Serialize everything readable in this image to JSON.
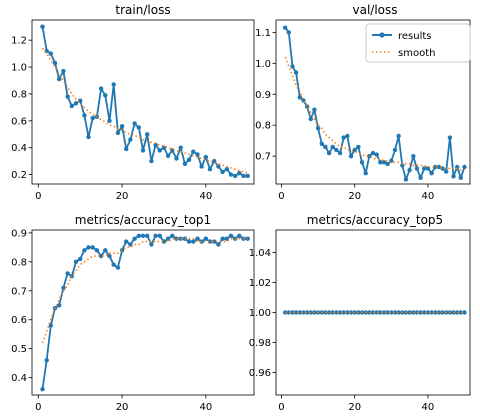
{
  "colors": {
    "results": "#1f77b4",
    "smooth": "#ff7f0e"
  },
  "legend": {
    "results": "results",
    "smooth": "smooth",
    "placement": "top-right",
    "panel": 1
  },
  "chart_data": [
    {
      "type": "line",
      "title": "train/loss",
      "xlim": [
        -1.5,
        51.5
      ],
      "ylim": [
        0.13,
        1.35
      ],
      "xticks": [
        0,
        20,
        40
      ],
      "yticks": [
        0.2,
        0.4,
        0.6,
        0.8,
        1.0,
        1.2
      ],
      "ytick_labels": [
        "0.2",
        "0.4",
        "0.6",
        "0.8",
        "1.0",
        "1.2"
      ],
      "series": [
        {
          "name": "results",
          "x": [
            1,
            2,
            3,
            4,
            5,
            6,
            7,
            8,
            9,
            10,
            11,
            12,
            13,
            14,
            15,
            16,
            17,
            18,
            19,
            20,
            21,
            22,
            23,
            24,
            25,
            26,
            27,
            28,
            29,
            30,
            31,
            32,
            33,
            34,
            35,
            36,
            37,
            38,
            39,
            40,
            41,
            42,
            43,
            44,
            45,
            46,
            47,
            48,
            49,
            50
          ],
          "values": [
            1.3,
            1.12,
            1.1,
            1.03,
            0.91,
            0.97,
            0.78,
            0.71,
            0.73,
            0.75,
            0.64,
            0.48,
            0.62,
            0.63,
            0.84,
            0.79,
            0.6,
            0.87,
            0.51,
            0.56,
            0.39,
            0.46,
            0.58,
            0.55,
            0.38,
            0.5,
            0.3,
            0.42,
            0.38,
            0.4,
            0.34,
            0.38,
            0.32,
            0.4,
            0.28,
            0.31,
            0.37,
            0.35,
            0.26,
            0.33,
            0.24,
            0.3,
            0.26,
            0.22,
            0.24,
            0.2,
            0.19,
            0.21,
            0.19,
            0.19
          ]
        },
        {
          "name": "smooth",
          "x": [
            1,
            2,
            3,
            4,
            5,
            6,
            7,
            8,
            9,
            10,
            11,
            12,
            13,
            14,
            15,
            16,
            17,
            18,
            19,
            20,
            21,
            22,
            23,
            24,
            25,
            26,
            27,
            28,
            29,
            30,
            31,
            32,
            33,
            34,
            35,
            36,
            37,
            38,
            39,
            40,
            41,
            42,
            43,
            44,
            45,
            46,
            47,
            48,
            49,
            50
          ],
          "values": [
            1.14,
            1.1,
            1.05,
            1.0,
            0.95,
            0.9,
            0.85,
            0.8,
            0.76,
            0.73,
            0.7,
            0.67,
            0.65,
            0.63,
            0.61,
            0.59,
            0.57,
            0.56,
            0.54,
            0.53,
            0.51,
            0.5,
            0.49,
            0.48,
            0.46,
            0.45,
            0.44,
            0.43,
            0.42,
            0.41,
            0.4,
            0.39,
            0.38,
            0.37,
            0.36,
            0.35,
            0.34,
            0.33,
            0.32,
            0.31,
            0.3,
            0.29,
            0.28,
            0.27,
            0.26,
            0.25,
            0.24,
            0.23,
            0.22,
            0.21
          ]
        }
      ]
    },
    {
      "type": "line",
      "title": "val/loss",
      "xlim": [
        -1.5,
        51.5
      ],
      "ylim": [
        0.61,
        1.14
      ],
      "xticks": [
        0,
        20,
        40
      ],
      "yticks": [
        0.7,
        0.8,
        0.9,
        1.0,
        1.1
      ],
      "ytick_labels": [
        "0.7",
        "0.8",
        "0.9",
        "1.0",
        "1.1"
      ],
      "series": [
        {
          "name": "results",
          "x": [
            1,
            2,
            3,
            4,
            5,
            6,
            7,
            8,
            9,
            10,
            11,
            12,
            13,
            14,
            15,
            16,
            17,
            18,
            19,
            20,
            21,
            22,
            23,
            24,
            25,
            26,
            27,
            28,
            29,
            30,
            31,
            32,
            33,
            34,
            35,
            36,
            37,
            38,
            39,
            40,
            41,
            42,
            43,
            44,
            45,
            46,
            47,
            48,
            49,
            50
          ],
          "values": [
            1.115,
            1.1,
            0.99,
            0.97,
            0.89,
            0.88,
            0.86,
            0.82,
            0.85,
            0.79,
            0.74,
            0.73,
            0.71,
            0.73,
            0.72,
            0.71,
            0.76,
            0.765,
            0.7,
            0.72,
            0.73,
            0.68,
            0.645,
            0.7,
            0.71,
            0.705,
            0.68,
            0.68,
            0.675,
            0.685,
            0.72,
            0.765,
            0.67,
            0.625,
            0.655,
            0.7,
            0.66,
            0.63,
            0.66,
            0.66,
            0.645,
            0.665,
            0.665,
            0.66,
            0.65,
            0.76,
            0.635,
            0.665,
            0.63,
            0.665
          ]
        },
        {
          "name": "smooth",
          "x": [
            1,
            2,
            3,
            4,
            5,
            6,
            7,
            8,
            9,
            10,
            11,
            12,
            13,
            14,
            15,
            16,
            17,
            18,
            19,
            20,
            21,
            22,
            23,
            24,
            25,
            26,
            27,
            28,
            29,
            30,
            31,
            32,
            33,
            34,
            35,
            36,
            37,
            38,
            39,
            40,
            41,
            42,
            43,
            44,
            45,
            46,
            47,
            48,
            49,
            50
          ],
          "values": [
            1.02,
            0.99,
            0.96,
            0.93,
            0.91,
            0.88,
            0.86,
            0.84,
            0.82,
            0.8,
            0.79,
            0.77,
            0.76,
            0.75,
            0.74,
            0.73,
            0.73,
            0.72,
            0.72,
            0.715,
            0.71,
            0.705,
            0.7,
            0.7,
            0.695,
            0.69,
            0.69,
            0.685,
            0.685,
            0.68,
            0.68,
            0.68,
            0.675,
            0.675,
            0.675,
            0.67,
            0.67,
            0.67,
            0.67,
            0.665,
            0.665,
            0.665,
            0.665,
            0.66,
            0.66,
            0.66,
            0.66,
            0.66,
            0.655,
            0.655
          ]
        }
      ]
    },
    {
      "type": "line",
      "title": "metrics/accuracy_top1",
      "xlim": [
        -1.5,
        51.5
      ],
      "ylim": [
        0.34,
        0.91
      ],
      "xticks": [
        0,
        20,
        40
      ],
      "yticks": [
        0.4,
        0.5,
        0.6,
        0.7,
        0.8,
        0.9
      ],
      "ytick_labels": [
        "0.4",
        "0.5",
        "0.6",
        "0.7",
        "0.8",
        "0.9"
      ],
      "series": [
        {
          "name": "results",
          "x": [
            1,
            2,
            3,
            4,
            5,
            6,
            7,
            8,
            9,
            10,
            11,
            12,
            13,
            14,
            15,
            16,
            17,
            18,
            19,
            20,
            21,
            22,
            23,
            24,
            25,
            26,
            27,
            28,
            29,
            30,
            31,
            32,
            33,
            34,
            35,
            36,
            37,
            38,
            39,
            40,
            41,
            42,
            43,
            44,
            45,
            46,
            47,
            48,
            49,
            50
          ],
          "values": [
            0.36,
            0.46,
            0.58,
            0.64,
            0.65,
            0.71,
            0.76,
            0.75,
            0.8,
            0.81,
            0.84,
            0.85,
            0.85,
            0.84,
            0.82,
            0.84,
            0.82,
            0.79,
            0.78,
            0.84,
            0.87,
            0.86,
            0.88,
            0.89,
            0.89,
            0.89,
            0.86,
            0.89,
            0.89,
            0.87,
            0.88,
            0.89,
            0.88,
            0.88,
            0.88,
            0.87,
            0.87,
            0.88,
            0.87,
            0.88,
            0.87,
            0.87,
            0.86,
            0.88,
            0.88,
            0.89,
            0.88,
            0.89,
            0.88,
            0.88
          ]
        },
        {
          "name": "smooth",
          "x": [
            1,
            2,
            3,
            4,
            5,
            6,
            7,
            8,
            9,
            10,
            11,
            12,
            13,
            14,
            15,
            16,
            17,
            18,
            19,
            20,
            21,
            22,
            23,
            24,
            25,
            26,
            27,
            28,
            29,
            30,
            31,
            32,
            33,
            34,
            35,
            36,
            37,
            38,
            39,
            40,
            41,
            42,
            43,
            44,
            45,
            46,
            47,
            48,
            49,
            50
          ],
          "values": [
            0.52,
            0.56,
            0.6,
            0.64,
            0.67,
            0.7,
            0.72,
            0.75,
            0.77,
            0.79,
            0.8,
            0.81,
            0.82,
            0.82,
            0.82,
            0.82,
            0.83,
            0.83,
            0.83,
            0.84,
            0.85,
            0.85,
            0.86,
            0.86,
            0.87,
            0.87,
            0.87,
            0.87,
            0.87,
            0.87,
            0.87,
            0.88,
            0.88,
            0.88,
            0.88,
            0.88,
            0.88,
            0.87,
            0.87,
            0.87,
            0.87,
            0.87,
            0.87,
            0.87,
            0.87,
            0.88,
            0.88,
            0.88,
            0.88,
            0.88
          ]
        }
      ]
    },
    {
      "type": "line",
      "title": "metrics/accuracy_top5",
      "xlim": [
        -1.5,
        51.5
      ],
      "ylim": [
        0.945,
        1.055
      ],
      "xticks": [
        0,
        20,
        40
      ],
      "yticks": [
        0.96,
        0.98,
        1.0,
        1.02,
        1.04
      ],
      "ytick_labels": [
        "0.96",
        "0.98",
        "1.00",
        "1.02",
        "1.04"
      ],
      "series": [
        {
          "name": "results",
          "x": [
            1,
            2,
            3,
            4,
            5,
            6,
            7,
            8,
            9,
            10,
            11,
            12,
            13,
            14,
            15,
            16,
            17,
            18,
            19,
            20,
            21,
            22,
            23,
            24,
            25,
            26,
            27,
            28,
            29,
            30,
            31,
            32,
            33,
            34,
            35,
            36,
            37,
            38,
            39,
            40,
            41,
            42,
            43,
            44,
            45,
            46,
            47,
            48,
            49,
            50
          ],
          "values": [
            1.0,
            1.0,
            1.0,
            1.0,
            1.0,
            1.0,
            1.0,
            1.0,
            1.0,
            1.0,
            1.0,
            1.0,
            1.0,
            1.0,
            1.0,
            1.0,
            1.0,
            1.0,
            1.0,
            1.0,
            1.0,
            1.0,
            1.0,
            1.0,
            1.0,
            1.0,
            1.0,
            1.0,
            1.0,
            1.0,
            1.0,
            1.0,
            1.0,
            1.0,
            1.0,
            1.0,
            1.0,
            1.0,
            1.0,
            1.0,
            1.0,
            1.0,
            1.0,
            1.0,
            1.0,
            1.0,
            1.0,
            1.0,
            1.0,
            1.0
          ]
        },
        {
          "name": "smooth",
          "x": [
            1,
            2,
            3,
            4,
            5,
            6,
            7,
            8,
            9,
            10,
            11,
            12,
            13,
            14,
            15,
            16,
            17,
            18,
            19,
            20,
            21,
            22,
            23,
            24,
            25,
            26,
            27,
            28,
            29,
            30,
            31,
            32,
            33,
            34,
            35,
            36,
            37,
            38,
            39,
            40,
            41,
            42,
            43,
            44,
            45,
            46,
            47,
            48,
            49,
            50
          ],
          "values": [
            1.0,
            1.0,
            1.0,
            1.0,
            1.0,
            1.0,
            1.0,
            1.0,
            1.0,
            1.0,
            1.0,
            1.0,
            1.0,
            1.0,
            1.0,
            1.0,
            1.0,
            1.0,
            1.0,
            1.0,
            1.0,
            1.0,
            1.0,
            1.0,
            1.0,
            1.0,
            1.0,
            1.0,
            1.0,
            1.0,
            1.0,
            1.0,
            1.0,
            1.0,
            1.0,
            1.0,
            1.0,
            1.0,
            1.0,
            1.0,
            1.0,
            1.0,
            1.0,
            1.0,
            1.0,
            1.0,
            1.0,
            1.0,
            1.0,
            1.0
          ]
        }
      ]
    }
  ]
}
